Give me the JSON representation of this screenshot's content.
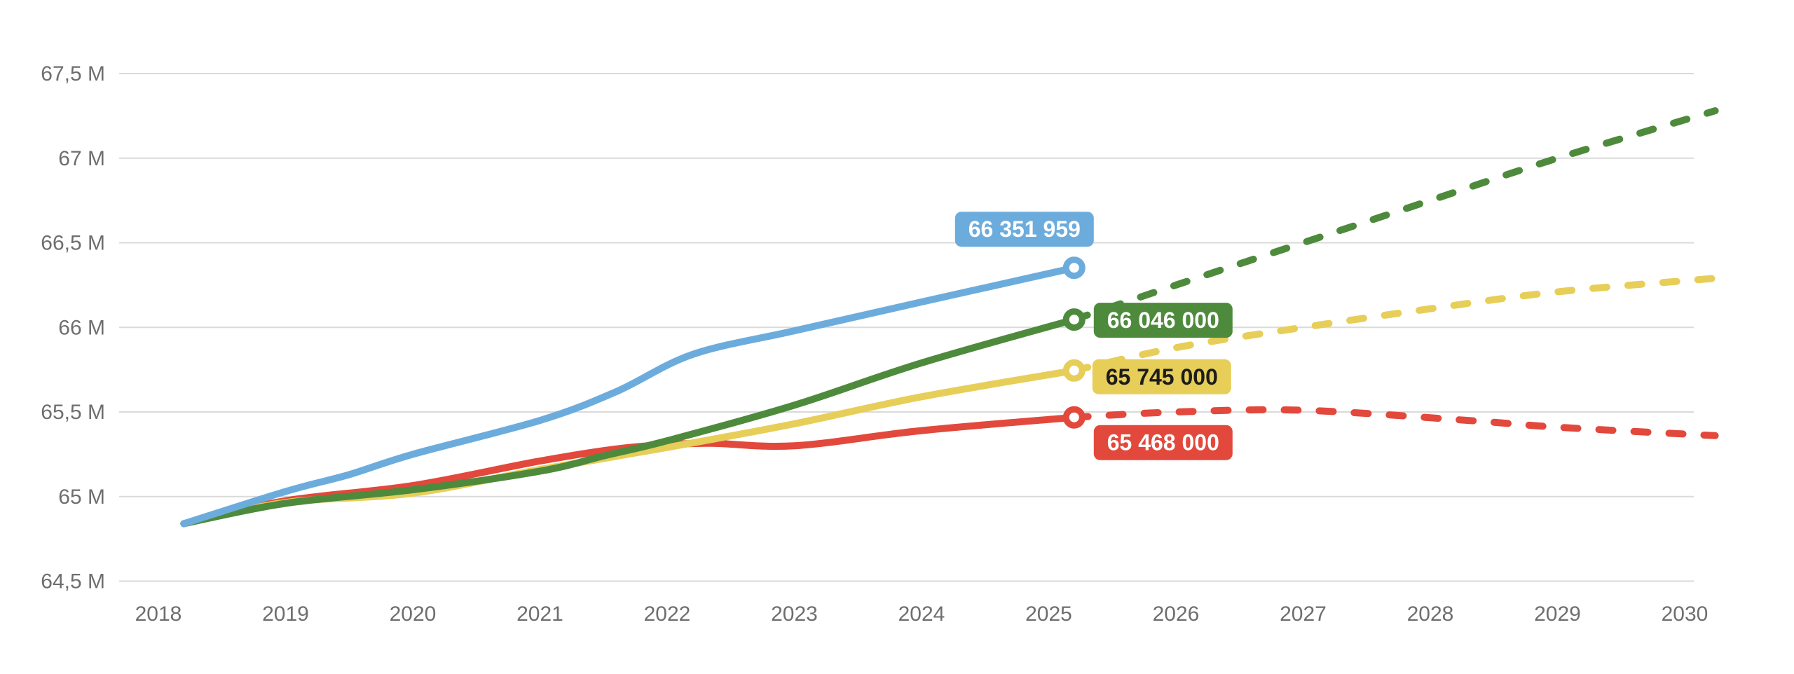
{
  "page": {
    "background": "#ffffff",
    "grid_color": "#dadada",
    "axis_text_color": "#6e6e6e"
  },
  "chart_data": {
    "type": "line",
    "title": "",
    "number_format": "french (space thousands separator, comma decimal)",
    "legend": "none",
    "grid": "horizontal only",
    "y_axis": {
      "unit": "M",
      "min": 64.5,
      "max": 67.5,
      "ticks": [
        {
          "value": 67.5,
          "label": "67,5 M"
        },
        {
          "value": 67.0,
          "label": "67 M"
        },
        {
          "value": 66.5,
          "label": "66,5 M"
        },
        {
          "value": 66.0,
          "label": "66 M"
        },
        {
          "value": 65.5,
          "label": "65,5 M"
        },
        {
          "value": 65.0,
          "label": "65 M"
        },
        {
          "value": 64.5,
          "label": "64,5 M"
        }
      ]
    },
    "x_axis": {
      "ticks": [
        {
          "value": 2018,
          "label": "2018"
        },
        {
          "value": 2019,
          "label": "2019"
        },
        {
          "value": 2020,
          "label": "2020"
        },
        {
          "value": 2021,
          "label": "2021"
        },
        {
          "value": 2022,
          "label": "2022"
        },
        {
          "value": 2023,
          "label": "2023"
        },
        {
          "value": 2024,
          "label": "2024"
        },
        {
          "value": 2025,
          "label": "2025"
        },
        {
          "value": 2026,
          "label": "2026"
        },
        {
          "value": 2027,
          "label": "2027"
        },
        {
          "value": 2028,
          "label": "2028"
        },
        {
          "value": 2029,
          "label": "2029"
        },
        {
          "value": 2030,
          "label": "2030"
        }
      ]
    },
    "series": [
      {
        "id": "blue",
        "color": "#6CACDD",
        "end_value": 66351959,
        "solid_points": [
          [
            2018.2,
            64.84
          ],
          [
            2019,
            65.03
          ],
          [
            2019.5,
            65.13
          ],
          [
            2020,
            65.25
          ],
          [
            2021,
            65.45
          ],
          [
            2021.6,
            65.62
          ],
          [
            2022.2,
            65.84
          ],
          [
            2023,
            65.98
          ],
          [
            2024,
            66.15
          ],
          [
            2025.2,
            66.352
          ]
        ],
        "dashed_points": [],
        "end_label": {
          "text": "66 351 959",
          "text_color": "#ffffff",
          "offset": [
            -71,
            -55
          ]
        }
      },
      {
        "id": "green",
        "color": "#4E8A3C",
        "end_value": 66046000,
        "solid_points": [
          [
            2018.2,
            64.84
          ],
          [
            2019,
            64.96
          ],
          [
            2020,
            65.04
          ],
          [
            2021,
            65.15
          ],
          [
            2021.5,
            65.24
          ],
          [
            2022,
            65.33
          ],
          [
            2023,
            65.54
          ],
          [
            2024,
            65.79
          ],
          [
            2025.2,
            66.046
          ]
        ],
        "dashed_points": [
          [
            2025.2,
            66.046
          ],
          [
            2026,
            66.25
          ],
          [
            2027,
            66.5
          ],
          [
            2028,
            66.75
          ],
          [
            2029,
            67.0
          ],
          [
            2030.24,
            67.28
          ]
        ],
        "end_label": {
          "text": "66 046 000",
          "text_color": "#ffffff",
          "offset": [
            127,
            1
          ]
        }
      },
      {
        "id": "yellow",
        "color": "#E7CE58",
        "end_value": 65745000,
        "solid_points": [
          [
            2018.2,
            64.84
          ],
          [
            2019,
            64.965
          ],
          [
            2020,
            65.02
          ],
          [
            2021,
            65.16
          ],
          [
            2022,
            65.29
          ],
          [
            2023,
            65.43
          ],
          [
            2024,
            65.59
          ],
          [
            2025.2,
            65.745
          ]
        ],
        "dashed_points": [
          [
            2025.2,
            65.745
          ],
          [
            2026,
            65.88
          ],
          [
            2027,
            66.0
          ],
          [
            2028,
            66.11
          ],
          [
            2029,
            66.21
          ],
          [
            2030.24,
            66.29
          ]
        ],
        "end_label": {
          "text": "65 745 000",
          "text_color": "#1c1c1b",
          "offset": [
            125,
            9
          ]
        }
      },
      {
        "id": "red",
        "color": "#E2483C",
        "end_value": 65468000,
        "solid_points": [
          [
            2018.2,
            64.84
          ],
          [
            2019,
            64.975
          ],
          [
            2020,
            65.065
          ],
          [
            2021,
            65.21
          ],
          [
            2021.7,
            65.29
          ],
          [
            2022.3,
            65.315
          ],
          [
            2023,
            65.3
          ],
          [
            2024,
            65.39
          ],
          [
            2025.2,
            65.468
          ]
        ],
        "dashed_points": [
          [
            2025.2,
            65.468
          ],
          [
            2026,
            65.5
          ],
          [
            2027,
            65.51
          ],
          [
            2028.3,
            65.45
          ],
          [
            2029,
            65.41
          ],
          [
            2030.24,
            65.36
          ]
        ],
        "end_label": {
          "text": "65 468 000",
          "text_color": "#ffffff",
          "offset": [
            127,
            36
          ]
        }
      }
    ]
  }
}
